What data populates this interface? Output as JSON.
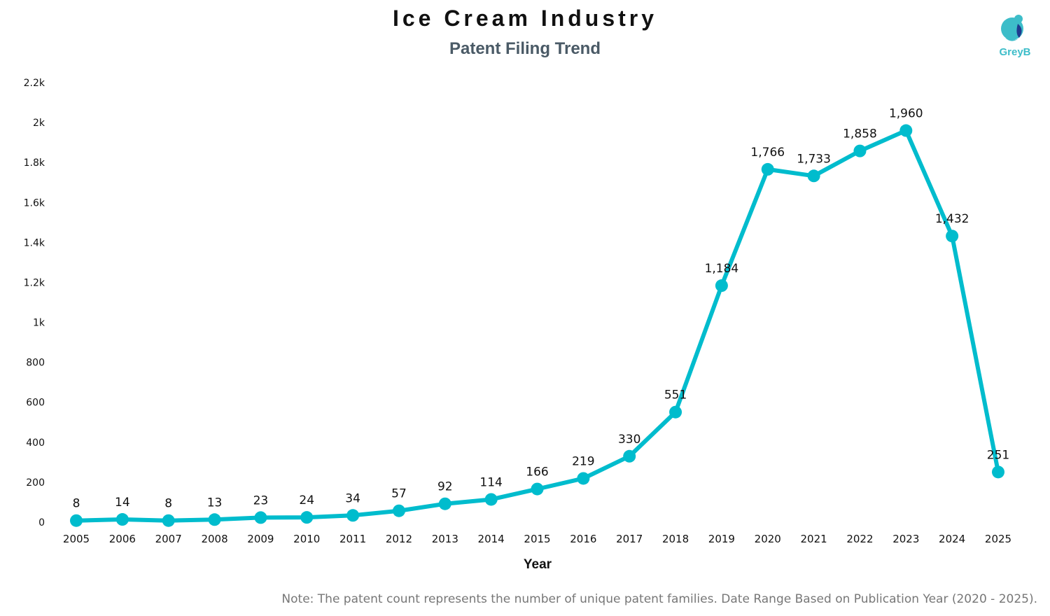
{
  "header": {
    "title": "Ice Cream Industry",
    "subtitle": "Patent Filing Trend"
  },
  "logo": {
    "name": "GreyB",
    "icon": "greyb-logo-icon",
    "colors": {
      "primary": "#3dbdc9",
      "dark": "#1f3a8f"
    }
  },
  "note": "Note: The patent count represents the number of unique patent families. Date Range Based on Publication Year (2020 - 2025).",
  "chart_data": {
    "type": "line",
    "title": "Ice Cream Industry",
    "subtitle": "Patent Filing Trend",
    "xlabel": "Year",
    "ylabel": "",
    "categories": [
      "2005",
      "2006",
      "2007",
      "2008",
      "2009",
      "2010",
      "2011",
      "2012",
      "2013",
      "2014",
      "2015",
      "2016",
      "2017",
      "2018",
      "2019",
      "2020",
      "2021",
      "2022",
      "2023",
      "2024",
      "2025"
    ],
    "series": [
      {
        "name": "Patent Families",
        "color": "#00bccd",
        "values": [
          8,
          14,
          8,
          13,
          23,
          24,
          34,
          57,
          92,
          114,
          166,
          219,
          330,
          551,
          1184,
          1766,
          1733,
          1858,
          1960,
          1432,
          251
        ],
        "labels": [
          "8",
          "14",
          "8",
          "13",
          "23",
          "24",
          "34",
          "57",
          "92",
          "114",
          "166",
          "219",
          "330",
          "551",
          "1,184",
          "1,766",
          "1,733",
          "1,858",
          "1,960",
          "1,432",
          "251"
        ]
      }
    ],
    "ylim": [
      0,
      2200
    ],
    "yticks": [
      0,
      200,
      400,
      600,
      800,
      1000,
      1200,
      1400,
      1600,
      1800,
      2000,
      2200
    ],
    "ytick_labels": [
      "0",
      "200",
      "400",
      "600",
      "800",
      "1k",
      "1.2k",
      "1.4k",
      "1.6k",
      "1.8k",
      "2k",
      "2.2k"
    ],
    "grid": false,
    "legend": "none"
  }
}
